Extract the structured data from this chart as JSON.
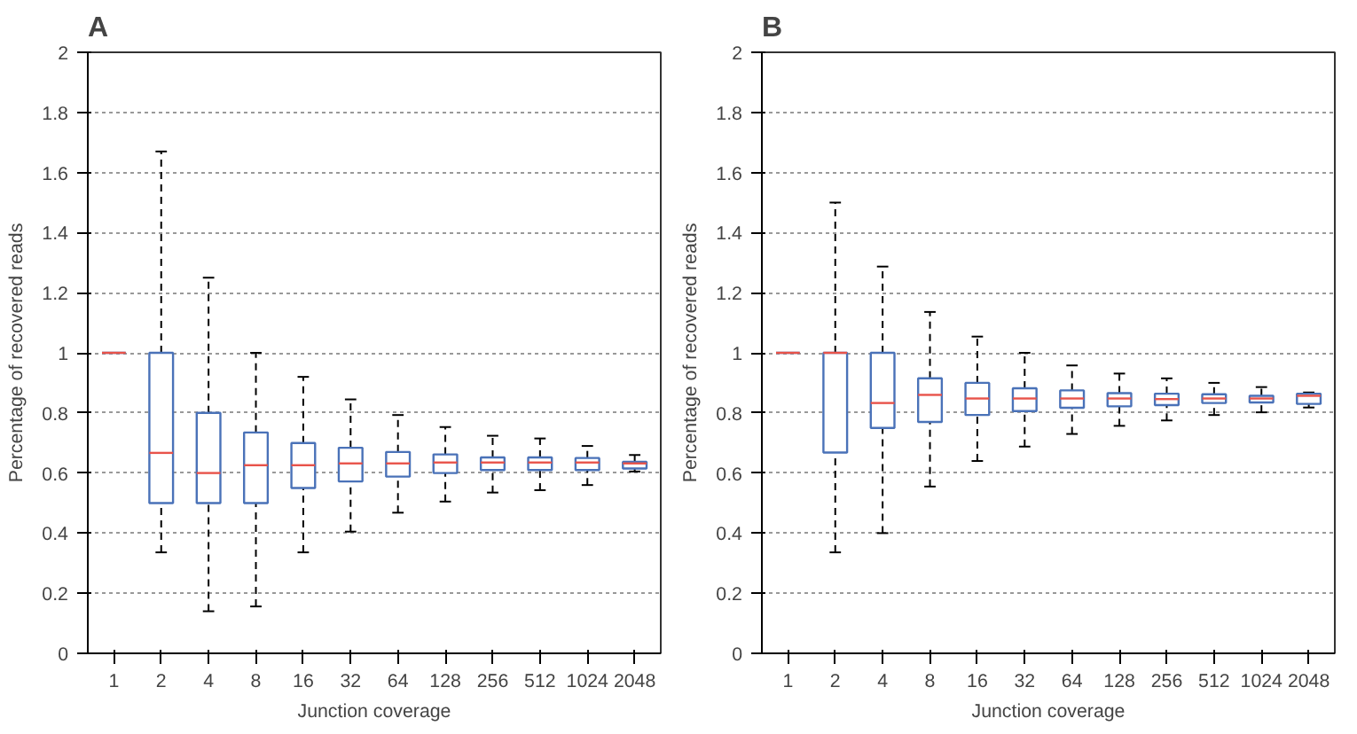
{
  "chart_data": [
    {
      "type": "box",
      "title": "A",
      "xlabel": "Junction coverage",
      "ylabel": "Percentage of recovered reads",
      "categories": [
        "1",
        "2",
        "4",
        "8",
        "16",
        "32",
        "64",
        "128",
        "256",
        "512",
        "1024",
        "2048"
      ],
      "ylim": [
        0,
        2
      ],
      "yticks": [
        0,
        0.2,
        0.4,
        0.6,
        0.8,
        1,
        1.2,
        1.4,
        1.6,
        1.8,
        2
      ],
      "grid": "y",
      "series": [
        {
          "color": "#4a72b8",
          "boxes": [
            {
              "low": 1,
              "q1": 1,
              "median": 1,
              "q3": 1,
              "high": 1
            },
            {
              "low": 0.336,
              "q1": 0.5,
              "median": 0.667,
              "q3": 1,
              "high": 1.67
            },
            {
              "low": 0.14,
              "q1": 0.5,
              "median": 0.6,
              "q3": 0.8,
              "high": 1.25
            },
            {
              "low": 0.156,
              "q1": 0.5,
              "median": 0.626,
              "q3": 0.735,
              "high": 1
            },
            {
              "low": 0.336,
              "q1": 0.55,
              "median": 0.626,
              "q3": 0.7,
              "high": 0.92
            },
            {
              "low": 0.405,
              "q1": 0.572,
              "median": 0.632,
              "q3": 0.684,
              "high": 0.845
            },
            {
              "low": 0.468,
              "q1": 0.588,
              "median": 0.632,
              "q3": 0.67,
              "high": 0.793
            },
            {
              "low": 0.505,
              "q1": 0.6,
              "median": 0.635,
              "q3": 0.662,
              "high": 0.753
            },
            {
              "low": 0.535,
              "q1": 0.61,
              "median": 0.635,
              "q3": 0.652,
              "high": 0.724
            },
            {
              "low": 0.543,
              "q1": 0.61,
              "median": 0.635,
              "q3": 0.652,
              "high": 0.715
            },
            {
              "low": 0.56,
              "q1": 0.61,
              "median": 0.635,
              "q3": 0.65,
              "high": 0.69
            },
            {
              "low": 0.605,
              "q1": 0.615,
              "median": 0.632,
              "q3": 0.637,
              "high": 0.66
            }
          ]
        }
      ]
    },
    {
      "type": "box",
      "title": "B",
      "xlabel": "Junction coverage",
      "ylabel": "Percentage of recovered reads",
      "categories": [
        "1",
        "2",
        "4",
        "8",
        "16",
        "32",
        "64",
        "128",
        "256",
        "512",
        "1024",
        "2048"
      ],
      "ylim": [
        0,
        2
      ],
      "yticks": [
        0,
        0.2,
        0.4,
        0.6,
        0.8,
        1,
        1.2,
        1.4,
        1.6,
        1.8,
        2
      ],
      "grid": "y",
      "series": [
        {
          "color": "#4a72b8",
          "boxes": [
            {
              "low": 1,
              "q1": 1,
              "median": 1,
              "q3": 1,
              "high": 1
            },
            {
              "low": 0.336,
              "q1": 0.668,
              "median": 1,
              "q3": 1,
              "high": 1.5
            },
            {
              "low": 0.4,
              "q1": 0.75,
              "median": 0.833,
              "q3": 1,
              "high": 1.287
            },
            {
              "low": 0.555,
              "q1": 0.77,
              "median": 0.86,
              "q3": 0.915,
              "high": 1.136
            },
            {
              "low": 0.64,
              "q1": 0.793,
              "median": 0.848,
              "q3": 0.9,
              "high": 1.054
            },
            {
              "low": 0.688,
              "q1": 0.806,
              "median": 0.848,
              "q3": 0.882,
              "high": 1
            },
            {
              "low": 0.73,
              "q1": 0.817,
              "median": 0.848,
              "q3": 0.875,
              "high": 0.958
            },
            {
              "low": 0.757,
              "q1": 0.822,
              "median": 0.848,
              "q3": 0.866,
              "high": 0.931
            },
            {
              "low": 0.775,
              "q1": 0.826,
              "median": 0.846,
              "q3": 0.864,
              "high": 0.915
            },
            {
              "low": 0.793,
              "q1": 0.833,
              "median": 0.848,
              "q3": 0.862,
              "high": 0.9
            },
            {
              "low": 0.802,
              "q1": 0.835,
              "median": 0.848,
              "q3": 0.857,
              "high": 0.886
            },
            {
              "low": 0.818,
              "q1": 0.83,
              "median": 0.857,
              "q3": 0.864,
              "high": 0.868
            }
          ]
        }
      ]
    }
  ]
}
